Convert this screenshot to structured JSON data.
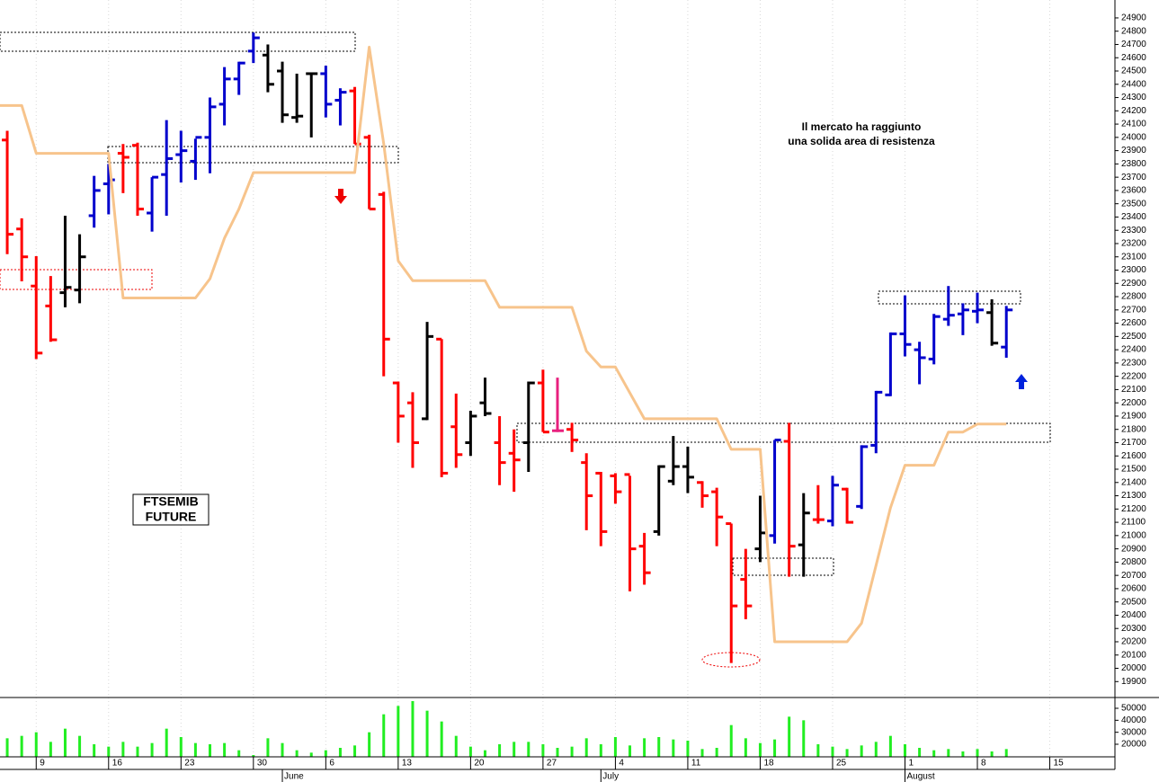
{
  "chart_data": [
    {
      "type": "ohlc",
      "open": [
        23980,
        23310,
        22880,
        22730,
        22830,
        22850,
        23410,
        23650,
        23880,
        23940,
        23430,
        23720,
        23870,
        23820,
        24000,
        24250,
        24440,
        24650,
        24620,
        24500,
        24150,
        24480,
        24480,
        24280,
        24350,
        24000,
        23570,
        22150,
        22000,
        21880,
        22480,
        21820,
        21700,
        22000,
        21700,
        21620,
        21700,
        22150,
        21790,
        21800,
        21550,
        21470,
        21450,
        21460,
        20920,
        21030,
        21410,
        21520,
        21400,
        21330,
        21090,
        20670,
        20900,
        21000,
        21710,
        20930,
        21120,
        21110,
        21350,
        21220,
        21680,
        22060,
        22520,
        22400,
        22330,
        22630,
        22670,
        22690,
        22680,
        22420
      ],
      "high": [
        24050,
        23390,
        23105,
        22955,
        23410,
        23270,
        23710,
        23800,
        23950,
        23960,
        23700,
        24130,
        24050,
        23990,
        24300,
        24530,
        24570,
        24790,
        24700,
        24570,
        24480,
        24490,
        24540,
        24370,
        24380,
        24020,
        23590,
        22160,
        22080,
        22610,
        22480,
        22070,
        21940,
        22190,
        21900,
        21800,
        22160,
        22250,
        22190,
        21850,
        21620,
        21480,
        21470,
        21450,
        21020,
        21530,
        21750,
        21670,
        21410,
        21360,
        21090,
        20900,
        21300,
        21720,
        21850,
        21320,
        21380,
        21450,
        21360,
        21680,
        22090,
        22530,
        22810,
        22460,
        22670,
        22880,
        22750,
        22830,
        22780,
        22730
      ],
      "low": [
        23120,
        22915,
        22330,
        22460,
        22720,
        22750,
        23320,
        23420,
        23580,
        23410,
        23290,
        23410,
        23660,
        23680,
        23730,
        24090,
        24320,
        24560,
        24340,
        24110,
        24110,
        24000,
        24150,
        24090,
        23950,
        23460,
        22200,
        21700,
        21510,
        21870,
        21440,
        21510,
        21600,
        21900,
        21380,
        21330,
        21480,
        21780,
        21780,
        21630,
        21040,
        20920,
        21240,
        20580,
        20630,
        21000,
        21380,
        21320,
        21210,
        20920,
        20040,
        20370,
        20800,
        20940,
        20690,
        20690,
        21090,
        21070,
        21090,
        21200,
        21620,
        22050,
        22350,
        22140,
        22290,
        22580,
        22510,
        22600,
        22430,
        22340
      ],
      "close": [
        23270,
        23100,
        22375,
        22475,
        22870,
        23100,
        23600,
        23680,
        23850,
        23460,
        23700,
        23840,
        23900,
        24000,
        24230,
        24440,
        24560,
        24750,
        24400,
        24170,
        24160,
        24480,
        24250,
        24340,
        23950,
        23460,
        22480,
        21900,
        21700,
        22500,
        21470,
        21610,
        21900,
        21920,
        21550,
        21570,
        22150,
        21780,
        21790,
        21720,
        21300,
        21030,
        21330,
        20900,
        20720,
        21520,
        21520,
        21440,
        21300,
        21140,
        20470,
        20470,
        21020,
        21720,
        20920,
        21170,
        21120,
        21380,
        21100,
        21670,
        22080,
        22520,
        22440,
        22340,
        22650,
        22660,
        22700,
        22700,
        22450,
        22700
      ],
      "colors": [
        "#ff0000",
        "#ff0000",
        "#ff0000",
        "#ff0000",
        "#000000",
        "#000000",
        "#0000cc",
        "#0000cc",
        "#ff0000",
        "#ff0000",
        "#0000cc",
        "#0000cc",
        "#0000cc",
        "#0000cc",
        "#0000cc",
        "#0000cc",
        "#0000cc",
        "#0000cc",
        "#000000",
        "#000000",
        "#000000",
        "#000000",
        "#0000cc",
        "#0000cc",
        "#ff0000",
        "#ff0000",
        "#ff0000",
        "#ff0000",
        "#ff0000",
        "#000000",
        "#ff0000",
        "#ff0000",
        "#000000",
        "#000000",
        "#ff0000",
        "#ff0000",
        "#000000",
        "#ff0000",
        "#e8207e",
        "#ff0000",
        "#ff0000",
        "#ff0000",
        "#ff0000",
        "#ff0000",
        "#ff0000",
        "#000000",
        "#000000",
        "#000000",
        "#ff0000",
        "#ff0000",
        "#ff0000",
        "#ff0000",
        "#000000",
        "#0000cc",
        "#ff0000",
        "#000000",
        "#ff0000",
        "#0000cc",
        "#ff0000",
        "#0000cc",
        "#0000cc",
        "#0000cc",
        "#0000cc",
        "#0000cc",
        "#0000cc",
        "#0000cc",
        "#0000cc",
        "#0000cc",
        "#000000",
        "#0000cc"
      ],
      "overlay": {
        "type": "line",
        "color": "#f7c48c",
        "x": [
          -0.5,
          1,
          2,
          7,
          8,
          13,
          14,
          15,
          16,
          17,
          24,
          25,
          26,
          27,
          28,
          33,
          34,
          39,
          40,
          41,
          42,
          44,
          49,
          50,
          52,
          53,
          58,
          59,
          61,
          62,
          64,
          65,
          66,
          67,
          69
        ],
        "values": [
          24240,
          24240,
          23880,
          23880,
          22790,
          22790,
          22935,
          23240,
          23460,
          23735,
          23735,
          24680,
          23950,
          23070,
          22920,
          22920,
          22720,
          22720,
          22390,
          22270,
          22270,
          21880,
          21880,
          21650,
          21650,
          20200,
          20200,
          20340,
          21210,
          21530,
          21530,
          21780,
          21780,
          21840,
          21840
        ]
      },
      "xlim": [
        -0.5,
        76.5
      ],
      "ylim": [
        19780,
        25035
      ],
      "yticks": [
        19900,
        20000,
        20100,
        20200,
        20300,
        20400,
        20500,
        20600,
        20700,
        20800,
        20900,
        21000,
        21100,
        21200,
        21300,
        21400,
        21500,
        21600,
        21700,
        21800,
        21900,
        22000,
        22100,
        22200,
        22300,
        22400,
        22500,
        22600,
        22700,
        22800,
        22900,
        23000,
        23100,
        23200,
        23300,
        23400,
        23500,
        23600,
        23700,
        23800,
        23900,
        24000,
        24100,
        24200,
        24300,
        24400,
        24500,
        24600,
        24700,
        24800,
        24900
      ],
      "xticks": [
        {
          "value": 2,
          "label": "9"
        },
        {
          "value": 7,
          "label": "16"
        },
        {
          "value": 12,
          "label": "23"
        },
        {
          "value": 17,
          "label": "30"
        },
        {
          "value": 22,
          "label": "6"
        },
        {
          "value": 27,
          "label": "13"
        },
        {
          "value": 32,
          "label": "20"
        },
        {
          "value": 37,
          "label": "27"
        },
        {
          "value": 42,
          "label": "4"
        },
        {
          "value": 47,
          "label": "11"
        },
        {
          "value": 52,
          "label": "18"
        },
        {
          "value": 57,
          "label": "25"
        },
        {
          "value": 62,
          "label": "1"
        },
        {
          "value": 67,
          "label": "8"
        },
        {
          "value": 72,
          "label": "15"
        }
      ],
      "month_ticks": [
        {
          "value": 19,
          "label": "June"
        },
        {
          "value": 41,
          "label": "July"
        },
        {
          "value": 62,
          "label": "August"
        }
      ],
      "grid": true,
      "instrument": [
        "FTSEMIB",
        "FUTURE"
      ],
      "note": [
        "Il mercato ha raggiunto",
        "una solida area di resistenza"
      ]
    },
    {
      "type": "bar",
      "color": "#22ee22",
      "values": [
        25000,
        27000,
        30000,
        22000,
        33000,
        27000,
        20000,
        18000,
        22000,
        18000,
        21000,
        33000,
        26000,
        21000,
        20000,
        21000,
        15000,
        11000,
        25000,
        21000,
        15000,
        13000,
        15000,
        17000,
        19000,
        30000,
        45000,
        52000,
        56000,
        48000,
        39000,
        27000,
        18000,
        15000,
        20000,
        22000,
        22000,
        20000,
        17000,
        18000,
        25000,
        20000,
        26000,
        19000,
        25000,
        26000,
        24000,
        23000,
        16000,
        17000,
        36000,
        25000,
        21000,
        24000,
        43000,
        40000,
        20000,
        18000,
        16000,
        19000,
        22000,
        27000,
        20000,
        17000,
        15000,
        16000,
        14000,
        16000,
        14000,
        16000
      ],
      "ylim": [
        9500,
        59000
      ],
      "yticks": [
        20000,
        30000,
        40000,
        50000
      ]
    }
  ]
}
